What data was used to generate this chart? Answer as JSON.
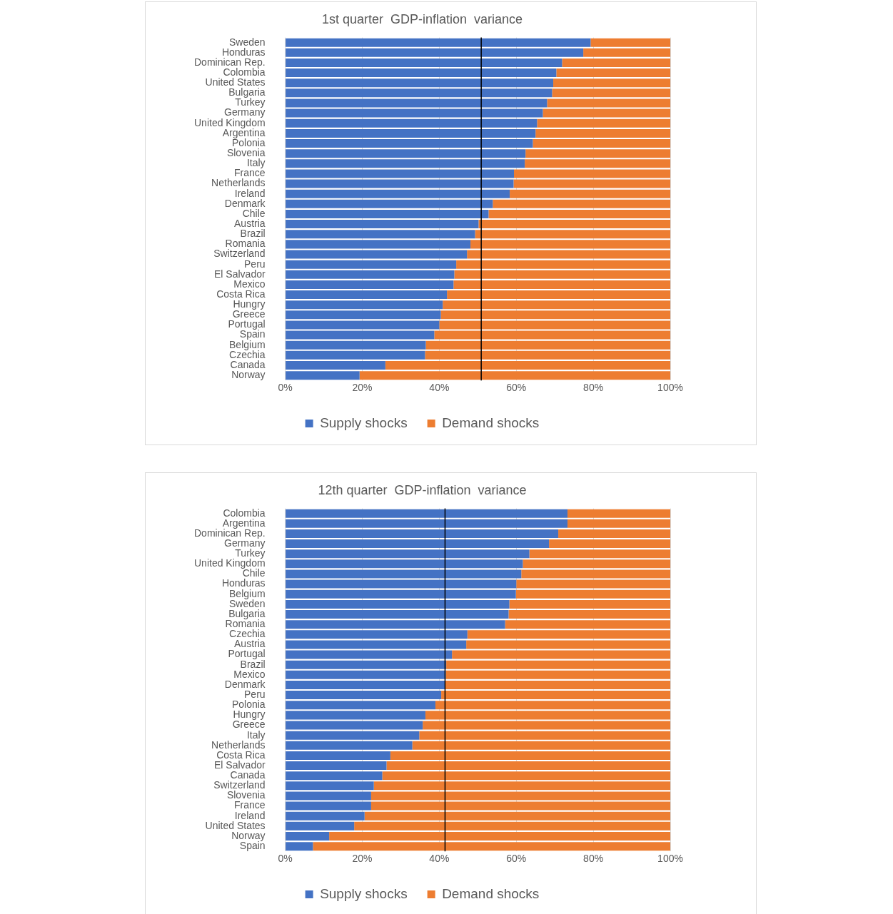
{
  "chart_data": [
    {
      "type": "bar",
      "orientation": "horizontal",
      "stacked": true,
      "title": "1st quarter  GDP-inflation  variance",
      "categories": [
        "Sweden",
        "Honduras",
        "Dominican Rep.",
        "Colombia",
        "United States",
        "Bulgaria",
        "Turkey",
        "Germany",
        "United Kingdom",
        "Argentina",
        "Polonia",
        "Slovenia",
        "Italy",
        "France",
        "Netherlands",
        "Ireland",
        "Denmark",
        "Chile",
        "Austria",
        "Brazil",
        "Romania",
        "Switzerland",
        "Peru",
        "El Salvador",
        "Mexico",
        "Costa Rica",
        "Hungry",
        "Greece",
        "Portugal",
        "Spain",
        "Belgium",
        "Czechia",
        "Canada",
        "Norway"
      ],
      "series": [
        {
          "name": "Supply shocks",
          "color": "#4472c4",
          "values": [
            79.3,
            77.4,
            71.9,
            70.4,
            69.6,
            69.3,
            68,
            66.9,
            65.4,
            65,
            64.3,
            62.4,
            62.2,
            59.4,
            59.3,
            58.3,
            53.9,
            52.8,
            50.2,
            49.3,
            48.1,
            47.2,
            44.4,
            43.9,
            43.7,
            42,
            40.9,
            40.4,
            40,
            38.7,
            36.5,
            36.3,
            26,
            19.3
          ]
        },
        {
          "name": "Demand shocks",
          "color": "#ed7d31",
          "values": [
            20.7,
            22.6,
            28.1,
            29.6,
            30.4,
            30.7,
            32,
            33.1,
            34.6,
            35,
            35.7,
            37.6,
            37.8,
            40.6,
            40.7,
            41.7,
            46.1,
            47.2,
            49.8,
            50.7,
            51.9,
            52.8,
            55.6,
            56.1,
            56.3,
            58,
            59.1,
            59.6,
            60,
            61.3,
            63.5,
            63.7,
            74,
            80.7
          ]
        }
      ],
      "xlim": [
        0,
        100
      ],
      "xticks": [
        {
          "value": 0,
          "label": "0%"
        },
        {
          "value": 20,
          "label": "20%"
        },
        {
          "value": 40,
          "label": "40%"
        },
        {
          "value": 60,
          "label": "60%"
        },
        {
          "value": 80,
          "label": "80%"
        },
        {
          "value": 100,
          "label": "100%"
        }
      ],
      "ref_lines": [
        {
          "axis": "x",
          "value": 50.9,
          "color": "#000000"
        }
      ],
      "grid": "x",
      "legend": "bottom"
    },
    {
      "type": "bar",
      "orientation": "horizontal",
      "stacked": true,
      "title": "12th quarter  GDP-inflation  variance",
      "categories": [
        "Colombia",
        "Argentina",
        "Dominican Rep.",
        "Germany",
        "Turkey",
        "United Kingdom",
        "Chile",
        "Honduras",
        "Belgium",
        "Sweden",
        "Bulgaria",
        "Romania",
        "Czechia",
        "Austria",
        "Portugal",
        "Brazil",
        "Mexico",
        "Denmark",
        "Peru",
        "Polonia",
        "Hungry",
        "Greece",
        "Italy",
        "Netherlands",
        "Costa Rica",
        "El Salvador",
        "Canada",
        "Switzerland",
        "Slovenia",
        "France",
        "Ireland",
        "United States",
        "Norway",
        "Spain"
      ],
      "series": [
        {
          "name": "Supply shocks",
          "color": "#4472c4",
          "values": [
            73.3,
            73.3,
            70.9,
            68.5,
            63.4,
            61.7,
            61.3,
            60,
            59.9,
            58.2,
            58,
            57.1,
            47.3,
            47,
            43.3,
            41.8,
            41.7,
            41.5,
            40.5,
            39,
            36.4,
            35.7,
            34.8,
            33,
            27.3,
            26.3,
            25.2,
            23,
            22.3,
            22.3,
            20.6,
            17.9,
            11.4,
            7.2
          ]
        },
        {
          "name": "Demand shocks",
          "color": "#ed7d31",
          "values": [
            26.7,
            26.7,
            29.1,
            31.5,
            36.6,
            38.3,
            38.7,
            40,
            40.1,
            41.8,
            42,
            42.9,
            52.7,
            53,
            56.7,
            58.2,
            58.3,
            58.5,
            59.5,
            61,
            63.6,
            64.3,
            65.2,
            67,
            72.7,
            73.7,
            74.8,
            77,
            77.7,
            77.7,
            79.4,
            82.1,
            88.6,
            92.8
          ]
        }
      ],
      "xlim": [
        0,
        100
      ],
      "xticks": [
        {
          "value": 0,
          "label": "0%"
        },
        {
          "value": 20,
          "label": "20%"
        },
        {
          "value": 40,
          "label": "40%"
        },
        {
          "value": 60,
          "label": "60%"
        },
        {
          "value": 80,
          "label": "80%"
        },
        {
          "value": 100,
          "label": "100%"
        }
      ],
      "ref_lines": [
        {
          "axis": "x",
          "value": 41.5,
          "color": "#000000"
        }
      ],
      "grid": "x",
      "legend": "bottom"
    }
  ]
}
